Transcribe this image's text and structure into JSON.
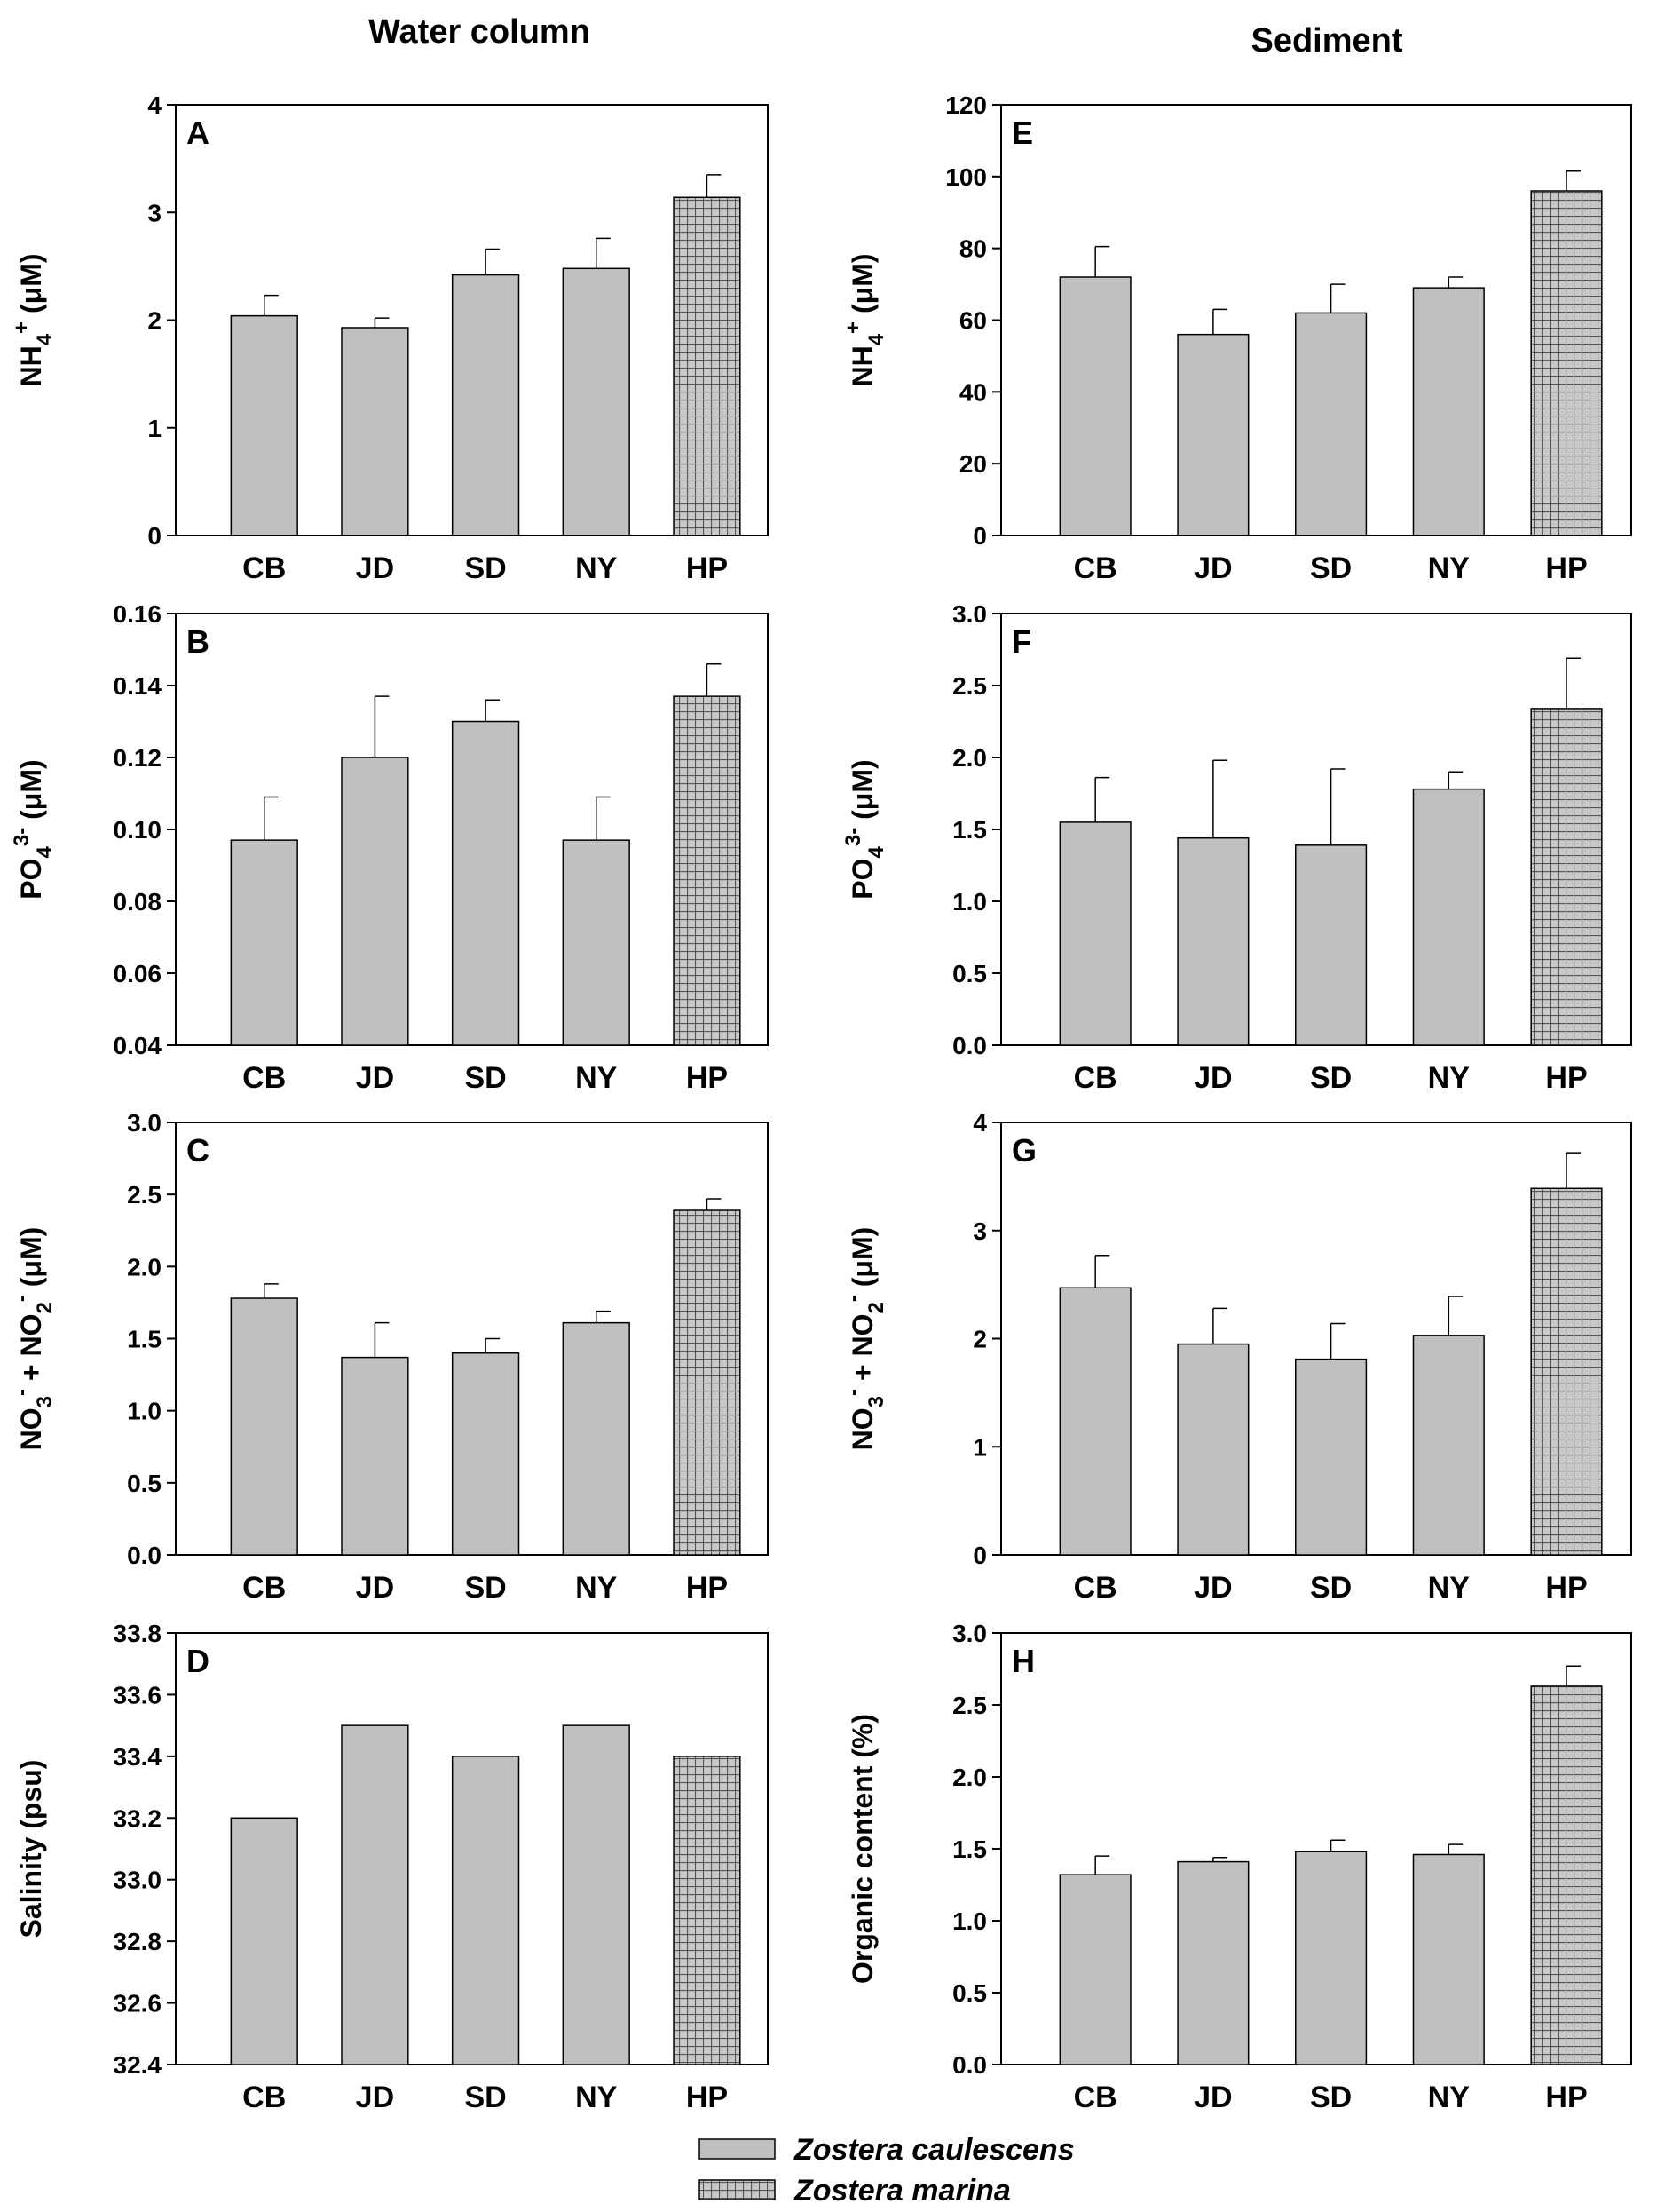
{
  "titles": {
    "water": "Water column",
    "sediment": "Sediment"
  },
  "colors": {
    "bar": "#c0c0c0",
    "hatch_line": "#555555",
    "stroke": "#000000"
  },
  "legend": [
    {
      "label": "Zostera caulescens",
      "pattern": "solid"
    },
    {
      "label": "Zostera marina",
      "pattern": "crosshatch"
    }
  ],
  "chart_data": [
    {
      "id": "A",
      "type": "bar",
      "label": "A",
      "column": "Water column",
      "ylabel": {
        "main": "NH",
        "sub": "4",
        "sup": "+",
        "unit": " (μM)"
      },
      "categories": [
        "CB",
        "JD",
        "SD",
        "NY",
        "HP"
      ],
      "values": [
        2.04,
        1.93,
        2.42,
        2.48,
        3.14
      ],
      "errors": [
        0.19,
        0.09,
        0.24,
        0.28,
        0.21
      ],
      "ylim": [
        0,
        4
      ],
      "yticks": [
        "0",
        "1",
        "2",
        "3",
        "4"
      ],
      "patterns": [
        "solid",
        "solid",
        "solid",
        "solid",
        "crosshatch"
      ]
    },
    {
      "id": "B",
      "type": "bar",
      "label": "B",
      "column": "Water column",
      "ylabel": {
        "main": "PO",
        "sub": "4",
        "sup": "3-",
        "unit": " (μM)"
      },
      "categories": [
        "CB",
        "JD",
        "SD",
        "NY",
        "HP"
      ],
      "values": [
        0.097,
        0.12,
        0.13,
        0.097,
        0.137
      ],
      "errors": [
        0.012,
        0.017,
        0.006,
        0.012,
        0.009
      ],
      "ylim": [
        0.04,
        0.16
      ],
      "yticks": [
        "0.04",
        "0.06",
        "0.08",
        "0.10",
        "0.12",
        "0.14",
        "0.16"
      ],
      "patterns": [
        "solid",
        "solid",
        "solid",
        "solid",
        "crosshatch"
      ]
    },
    {
      "id": "C",
      "type": "bar",
      "label": "C",
      "column": "Water column",
      "ylabel": {
        "main": "NO",
        "sub": "3",
        "sup": "-",
        "mid": " + NO",
        "sub2": "2",
        "sup2": "-",
        "unit": " (μM)"
      },
      "categories": [
        "CB",
        "JD",
        "SD",
        "NY",
        "HP"
      ],
      "values": [
        1.78,
        1.37,
        1.4,
        1.61,
        2.39
      ],
      "errors": [
        0.1,
        0.24,
        0.1,
        0.08,
        0.08
      ],
      "ylim": [
        0,
        3.0
      ],
      "yticks": [
        "0.0",
        "0.5",
        "1.0",
        "1.5",
        "2.0",
        "2.5",
        "3.0"
      ],
      "patterns": [
        "solid",
        "solid",
        "solid",
        "solid",
        "crosshatch"
      ]
    },
    {
      "id": "D",
      "type": "bar",
      "label": "D",
      "column": "Water column",
      "ylabel": {
        "main": "Salinity (psu)"
      },
      "categories": [
        "CB",
        "JD",
        "SD",
        "NY",
        "HP"
      ],
      "values": [
        33.2,
        33.5,
        33.4,
        33.5,
        33.4
      ],
      "errors": [
        0,
        0,
        0,
        0,
        0
      ],
      "ylim": [
        32.4,
        33.8
      ],
      "yticks": [
        "32.4",
        "32.6",
        "32.8",
        "33.0",
        "33.2",
        "33.4",
        "33.6",
        "33.8"
      ],
      "patterns": [
        "solid",
        "solid",
        "solid",
        "solid",
        "crosshatch"
      ]
    },
    {
      "id": "E",
      "type": "bar",
      "label": "E",
      "column": "Sediment",
      "ylabel": {
        "main": "NH",
        "sub": "4",
        "sup": "+",
        "unit": " (μM)"
      },
      "categories": [
        "CB",
        "JD",
        "SD",
        "NY",
        "HP"
      ],
      "values": [
        72,
        56,
        62,
        69,
        96
      ],
      "errors": [
        8.5,
        7.0,
        8.0,
        3.0,
        5.5
      ],
      "ylim": [
        0,
        120
      ],
      "yticks": [
        "0",
        "20",
        "40",
        "60",
        "80",
        "100",
        "120"
      ],
      "patterns": [
        "solid",
        "solid",
        "solid",
        "solid",
        "crosshatch"
      ]
    },
    {
      "id": "F",
      "type": "bar",
      "label": "F",
      "column": "Sediment",
      "ylabel": {
        "main": "PO",
        "sub": "4",
        "sup": "3-",
        "unit": " (μM)"
      },
      "categories": [
        "CB",
        "JD",
        "SD",
        "NY",
        "HP"
      ],
      "values": [
        1.55,
        1.44,
        1.39,
        1.78,
        2.34
      ],
      "errors": [
        0.31,
        0.54,
        0.53,
        0.12,
        0.35
      ],
      "ylim": [
        0,
        3.0
      ],
      "yticks": [
        "0.0",
        "0.5",
        "1.0",
        "1.5",
        "2.0",
        "2.5",
        "3.0"
      ],
      "patterns": [
        "solid",
        "solid",
        "solid",
        "solid",
        "crosshatch"
      ]
    },
    {
      "id": "G",
      "type": "bar",
      "label": "G",
      "column": "Sediment",
      "ylabel": {
        "main": "NO",
        "sub": "3",
        "sup": "-",
        "mid": " + NO",
        "sub2": "2",
        "sup2": "-",
        "unit": " (μM)"
      },
      "categories": [
        "CB",
        "JD",
        "SD",
        "NY",
        "HP"
      ],
      "values": [
        2.47,
        1.95,
        1.81,
        2.03,
        3.39
      ],
      "errors": [
        0.3,
        0.33,
        0.33,
        0.36,
        0.33
      ],
      "ylim": [
        0,
        4
      ],
      "yticks": [
        "0",
        "1",
        "2",
        "3",
        "4"
      ],
      "patterns": [
        "solid",
        "solid",
        "solid",
        "solid",
        "crosshatch"
      ]
    },
    {
      "id": "H",
      "type": "bar",
      "label": "H",
      "column": "Sediment",
      "ylabel": {
        "main": "Organic content (%)"
      },
      "categories": [
        "CB",
        "JD",
        "SD",
        "NY",
        "HP"
      ],
      "values": [
        1.32,
        1.41,
        1.48,
        1.46,
        2.63
      ],
      "errors": [
        0.13,
        0.03,
        0.08,
        0.07,
        0.14
      ],
      "ylim": [
        0,
        3.0
      ],
      "yticks": [
        "0.0",
        "0.5",
        "1.0",
        "1.5",
        "2.0",
        "2.5",
        "3.0"
      ],
      "patterns": [
        "solid",
        "solid",
        "solid",
        "solid",
        "crosshatch"
      ]
    }
  ]
}
